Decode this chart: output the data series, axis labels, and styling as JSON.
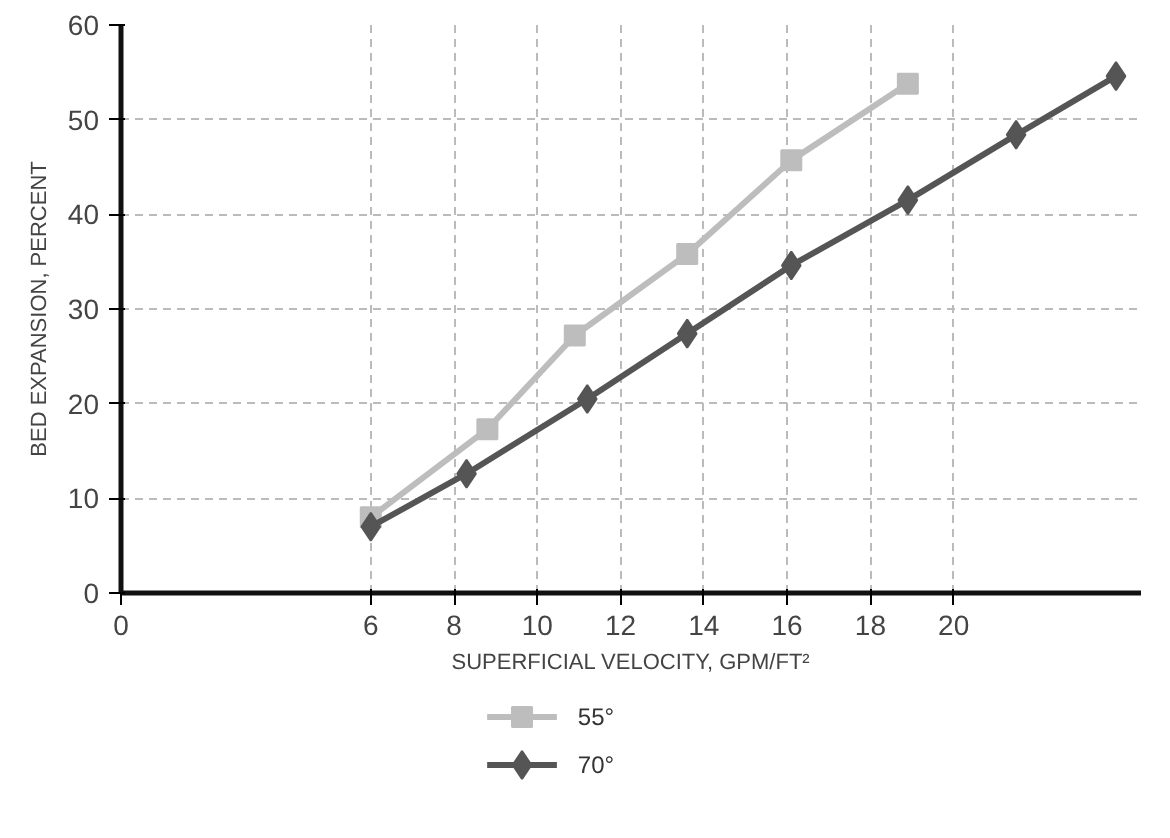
{
  "chart_data": {
    "type": "line",
    "xlabel": "SUPERFICIAL VELOCITY, GPM/FT²",
    "ylabel": "BED EXPANSION, PERCENT",
    "xlim": [
      0,
      24.5
    ],
    "xticks": [
      0,
      6,
      8,
      10,
      12,
      14,
      16,
      18,
      20
    ],
    "ylim": [
      0,
      60
    ],
    "yticks": [
      0,
      10,
      20,
      30,
      40,
      50,
      60
    ],
    "grid": true,
    "legend": "bottom",
    "series": [
      {
        "name": "55°",
        "color": "#bdbdbd",
        "marker": "square",
        "x": [
          6.0,
          8.8,
          10.9,
          13.6,
          16.1,
          18.9
        ],
        "values": [
          8,
          17.3,
          27.2,
          35.8,
          45.7,
          53.8
        ]
      },
      {
        "name": "70°",
        "color": "#555555",
        "marker": "diamond",
        "x": [
          6.0,
          8.3,
          11.2,
          13.6,
          16.1,
          18.9,
          21.5,
          23.9
        ],
        "values": [
          7,
          12.6,
          20.5,
          27.4,
          34.6,
          41.5,
          48.4,
          54.6
        ]
      }
    ]
  }
}
